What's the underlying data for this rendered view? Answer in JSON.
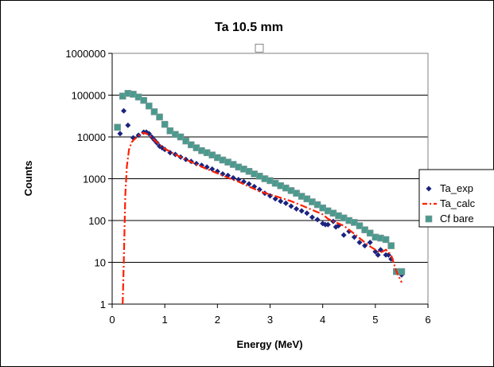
{
  "chart_data": {
    "type": "scatter",
    "title": "Ta 10.5  mm",
    "subtitle_glyph": "□",
    "xlabel": "Energy (MeV)",
    "ylabel": "Counts",
    "xlim": [
      0,
      6
    ],
    "ylim": [
      1,
      1000000
    ],
    "yscale": "log",
    "x_ticks": [
      "0",
      "1",
      "2",
      "3",
      "4",
      "5",
      "6"
    ],
    "y_ticks": [
      "1",
      "10",
      "100",
      "1000",
      "10000",
      "100000",
      "1000000"
    ],
    "grid": "horizontal",
    "legend_placement": "right",
    "series": [
      {
        "name": "Ta_exp",
        "marker": "diamond",
        "color": "#1a237e",
        "x": [
          0.15,
          0.22,
          0.3,
          0.4,
          0.5,
          0.6,
          0.65,
          0.7,
          0.75,
          0.8,
          0.85,
          0.9,
          0.95,
          1.0,
          1.1,
          1.2,
          1.3,
          1.4,
          1.5,
          1.6,
          1.7,
          1.8,
          1.9,
          2.0,
          2.1,
          2.2,
          2.3,
          2.4,
          2.5,
          2.6,
          2.7,
          2.8,
          2.9,
          3.0,
          3.1,
          3.2,
          3.3,
          3.4,
          3.5,
          3.6,
          3.7,
          3.8,
          3.9,
          4.0,
          4.05,
          4.1,
          4.2,
          4.25,
          4.3,
          4.4,
          4.5,
          4.6,
          4.7,
          4.8,
          4.9,
          5.0,
          5.05,
          5.1,
          5.2,
          5.25,
          5.3,
          5.4,
          5.5
        ],
        "y": [
          12000,
          42000,
          19000,
          9500,
          11000,
          13000,
          13000,
          12000,
          10000,
          8500,
          7200,
          6000,
          5500,
          5000,
          4200,
          3800,
          3300,
          2900,
          2600,
          2300,
          2100,
          1900,
          1700,
          1500,
          1300,
          1200,
          1050,
          950,
          850,
          750,
          650,
          550,
          450,
          390,
          330,
          290,
          260,
          220,
          190,
          170,
          150,
          120,
          105,
          85,
          80,
          80,
          95,
          70,
          75,
          45,
          55,
          40,
          30,
          25,
          30,
          18,
          15,
          20,
          15,
          15,
          12,
          6,
          5
        ]
      },
      {
        "name": "Ta_calc",
        "style": "dash-dot",
        "color": "#ff2000",
        "x": [
          0.2,
          0.22,
          0.25,
          0.28,
          0.32,
          0.37,
          0.43,
          0.5,
          0.55,
          0.6,
          0.65,
          0.7,
          0.8,
          0.9,
          1.0,
          1.2,
          1.4,
          1.6,
          1.8,
          2.0,
          2.2,
          2.4,
          2.6,
          2.8,
          3.0,
          3.2,
          3.4,
          3.6,
          3.8,
          4.0,
          4.1,
          4.2,
          4.3,
          4.4,
          4.5,
          4.6,
          4.7,
          4.8,
          4.9,
          5.0,
          5.1,
          5.2,
          5.3,
          5.4,
          5.5
        ],
        "y": [
          1,
          10,
          400,
          2000,
          5000,
          7500,
          9000,
          10500,
          12000,
          12500,
          12000,
          11000,
          8500,
          6500,
          5200,
          3800,
          2900,
          2200,
          1700,
          1350,
          1050,
          850,
          650,
          500,
          420,
          350,
          290,
          230,
          180,
          140,
          110,
          95,
          85,
          75,
          60,
          48,
          38,
          30,
          24,
          20,
          17,
          20,
          15,
          6,
          3.3
        ]
      },
      {
        "name": "Cf bare",
        "marker": "square",
        "color": "#4a9a8e",
        "x": [
          0.1,
          0.2,
          0.3,
          0.4,
          0.5,
          0.6,
          0.7,
          0.8,
          0.9,
          1.0,
          1.1,
          1.2,
          1.3,
          1.4,
          1.5,
          1.6,
          1.7,
          1.8,
          1.9,
          2.0,
          2.1,
          2.2,
          2.3,
          2.4,
          2.5,
          2.6,
          2.7,
          2.8,
          2.9,
          3.0,
          3.1,
          3.2,
          3.3,
          3.4,
          3.5,
          3.6,
          3.7,
          3.8,
          3.9,
          4.0,
          4.1,
          4.2,
          4.3,
          4.4,
          4.5,
          4.6,
          4.7,
          4.8,
          4.9,
          5.0,
          5.1,
          5.2,
          5.3,
          5.4,
          5.5
        ],
        "y": [
          17000,
          95000,
          110000,
          105000,
          90000,
          75000,
          55000,
          40000,
          30000,
          20000,
          14000,
          11500,
          10000,
          8000,
          6500,
          5500,
          4700,
          4200,
          3700,
          3200,
          2800,
          2500,
          2200,
          1900,
          1700,
          1500,
          1300,
          1150,
          1000,
          900,
          780,
          680,
          600,
          520,
          450,
          380,
          330,
          280,
          240,
          200,
          170,
          150,
          130,
          115,
          100,
          90,
          75,
          60,
          50,
          40,
          38,
          35,
          25,
          6,
          6
        ]
      }
    ]
  }
}
